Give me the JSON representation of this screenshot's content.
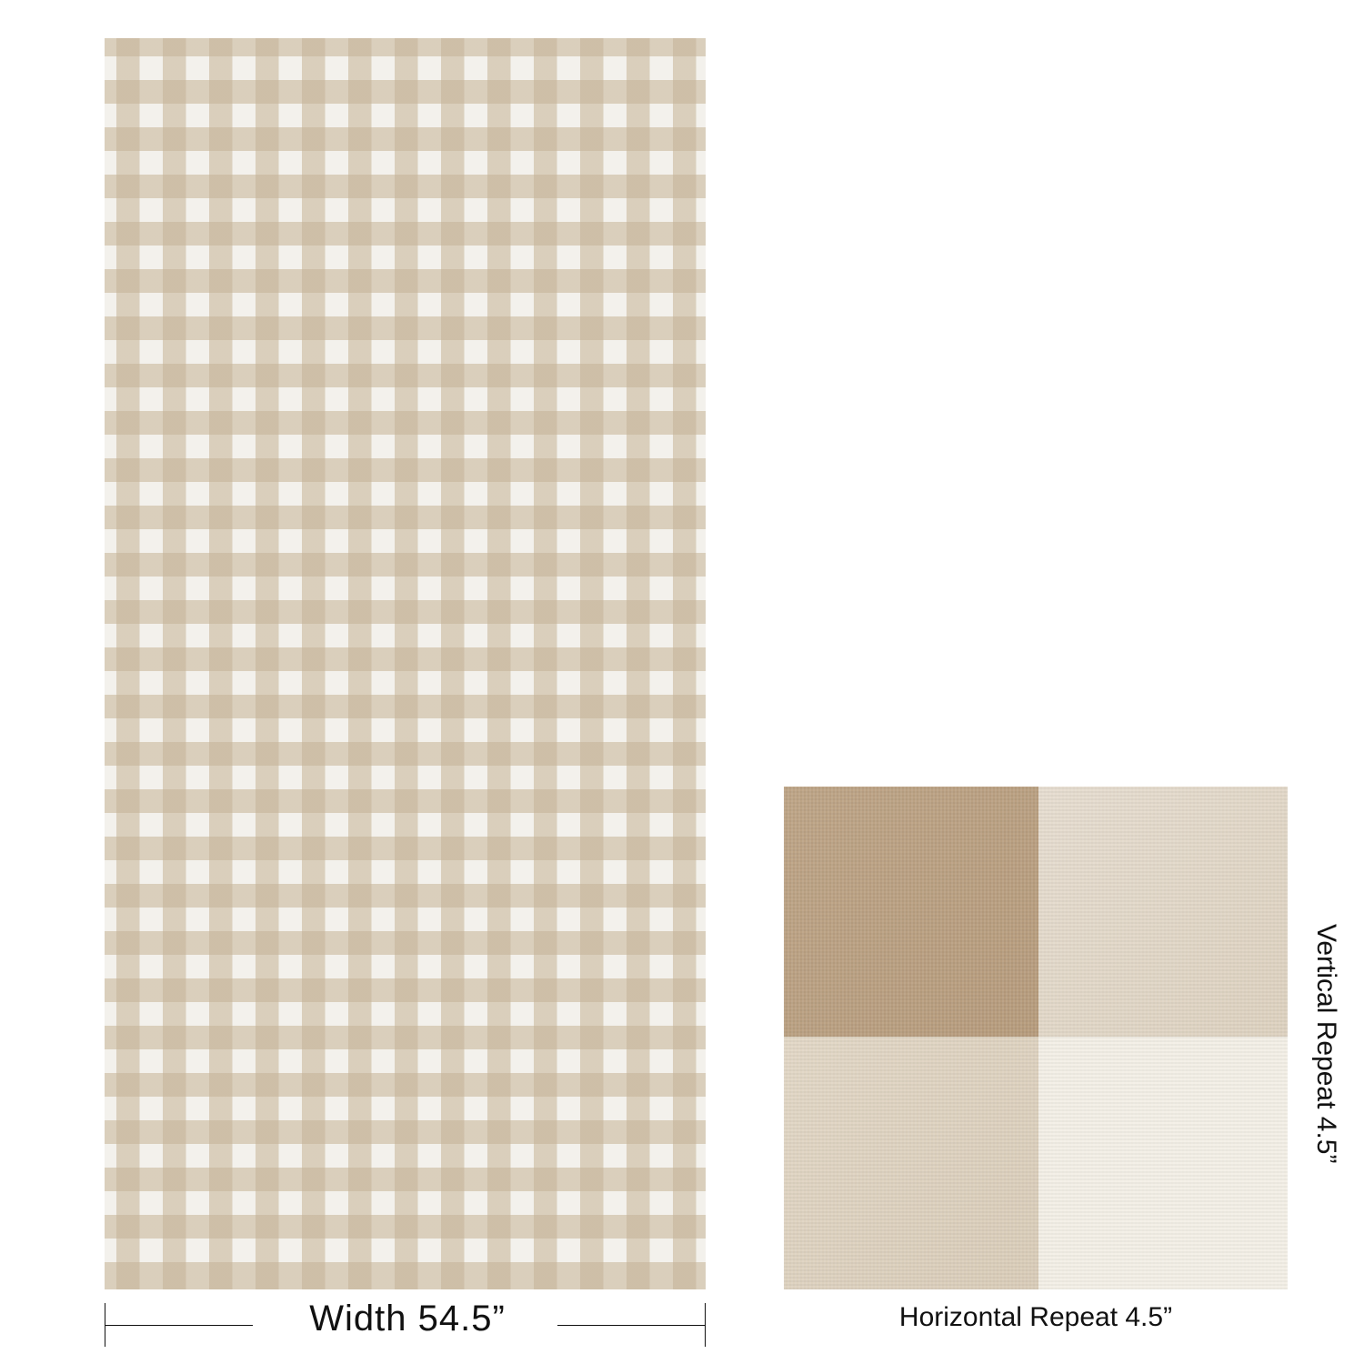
{
  "fabric": {
    "pattern": "gingham check",
    "colors": {
      "dark_check": "#c4b296",
      "light_check": "#ddd4c7",
      "white": "#f3f1ec"
    }
  },
  "width_label": "Width 54.5”",
  "swatch": {
    "colors": {
      "top_left": "#b99e7f",
      "top_right": "#e4dbcd",
      "bottom_left": "#ddd1bf",
      "bottom_right": "#f3efe6"
    }
  },
  "horizontal_repeat_label": "Horizontal Repeat 4.5”",
  "vertical_repeat_label": "Vertical Repeat 4.5”"
}
